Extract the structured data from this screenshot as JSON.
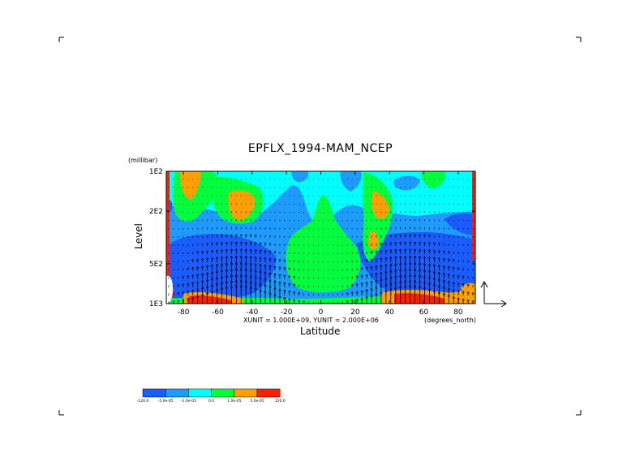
{
  "chart_data": {
    "type": "heatmap",
    "title": "EPFLX_1994-MAM_NCEP",
    "xlabel": "Latitude",
    "ylabel": "Level",
    "y_unit": "(millibar)",
    "x_unit": "(degrees_north)",
    "vector_scale": "XUNIT = 1.000E+09, YUNIT = 2.000E+06",
    "x_ticks": [
      "-80",
      "-60",
      "-40",
      "-20",
      "0",
      "20",
      "40",
      "60",
      "80"
    ],
    "x_tick_values": [
      -80,
      -60,
      -40,
      -20,
      0,
      20,
      40,
      60,
      80
    ],
    "xlim": [
      -90,
      90
    ],
    "y_ticks": [
      "1E2",
      "2E2",
      "5E2",
      "1E3"
    ],
    "y_tick_values": [
      100,
      200,
      500,
      1000
    ],
    "ylim": [
      1000,
      100
    ],
    "y_scale": "log",
    "grid": false,
    "overlay": "vector field (E-P flux arrows)",
    "colorbar": {
      "labels": [
        "-120.0",
        "-5.0e-05",
        "-1.0e-05",
        "0.0",
        "1.0e-05",
        "5.0e-05",
        "120.0"
      ],
      "colors": [
        "#1a5cff",
        "#1e9bff",
        "#00ffff",
        "#00ff3c",
        "#ffa000",
        "#ff1e00"
      ]
    }
  }
}
